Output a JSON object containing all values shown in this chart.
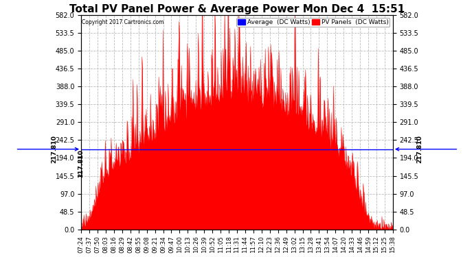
{
  "title": "Total PV Panel Power & Average Power Mon Dec 4  15:51",
  "copyright": "Copyright 2017 Cartronics.com",
  "average_value": 217.81,
  "average_label": "217.810",
  "ylim": [
    0.0,
    582.0
  ],
  "yticks": [
    0.0,
    48.5,
    97.0,
    145.5,
    194.0,
    242.5,
    291.0,
    339.5,
    388.0,
    436.5,
    485.0,
    533.5,
    582.0
  ],
  "background_color": "#ffffff",
  "grid_color": "#bbbbbb",
  "fill_color": "#ff0000",
  "line_color": "#ff0000",
  "avg_line_color": "#0000ff",
  "title_fontsize": 11,
  "legend_labels": [
    "Average  (DC Watts)",
    "PV Panels  (DC Watts)"
  ],
  "legend_colors": [
    "#0000ff",
    "#ff0000"
  ],
  "xtick_labels": [
    "07:24",
    "07:37",
    "07:50",
    "08:03",
    "08:16",
    "08:29",
    "08:42",
    "08:55",
    "09:08",
    "09:21",
    "09:34",
    "09:47",
    "10:00",
    "10:13",
    "10:26",
    "10:39",
    "10:52",
    "11:05",
    "11:18",
    "11:31",
    "11:44",
    "11:57",
    "12:10",
    "12:23",
    "12:36",
    "12:49",
    "13:02",
    "13:15",
    "13:28",
    "13:41",
    "13:54",
    "14:07",
    "14:20",
    "14:33",
    "14:46",
    "14:59",
    "15:12",
    "15:25",
    "15:38"
  ],
  "num_points": 800
}
